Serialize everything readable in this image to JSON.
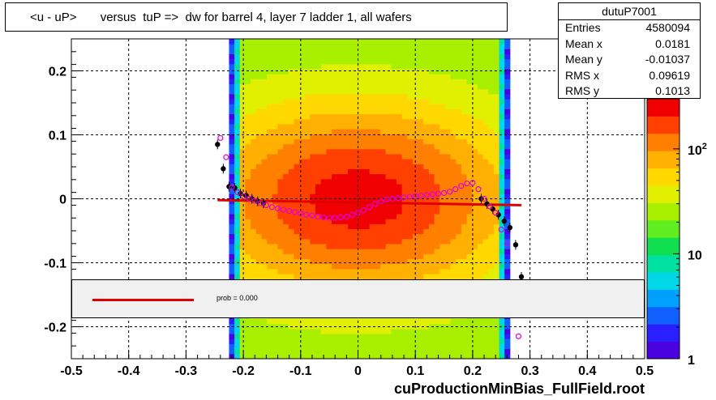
{
  "title": "<u - uP>       versus  tuP =>  dw for barrel 4, layer 7 ladder 1, all wafers",
  "stats": {
    "name": "dutuP7001",
    "rows": [
      {
        "label": "Entries",
        "value": "4580094"
      },
      {
        "label": "Mean x",
        "value": "0.0181"
      },
      {
        "label": "Mean y",
        "value": "-0.01037"
      },
      {
        "label": "RMS x",
        "value": "0.09619"
      },
      {
        "label": "RMS y",
        "value": "0.1013"
      }
    ]
  },
  "fit": {
    "text": "prob = 0.000",
    "color": "#e00000"
  },
  "footer": "cuProductionMinBias_FullField.root",
  "chart_data": {
    "type": "heatmap",
    "title": "<u - uP>       versus  tuP =>  dw for barrel 4, layer 7 ladder 1, all wafers",
    "xlim": [
      -0.5,
      0.5
    ],
    "ylim": [
      -0.25,
      0.25
    ],
    "x_ticks": [
      "-0.5",
      "-0.4",
      "-0.3",
      "-0.2",
      "-0.1",
      "0",
      "0.1",
      "0.2",
      "0.3",
      "0.4",
      "0.5"
    ],
    "y_ticks": [
      "-0.2",
      "-0.1",
      "0",
      "0.1",
      "0.2"
    ],
    "z_scale": "log",
    "z_ticks": [
      "1",
      "10",
      "10^2"
    ],
    "z_range": [
      1,
      300
    ],
    "grid": true,
    "occupied_x_range": [
      -0.225,
      0.265
    ],
    "core": {
      "x_center": 0.0,
      "y_center": 0.0,
      "x_half_width": 0.18,
      "y_half_width": 0.06
    },
    "series": [
      {
        "marker": "filled-circle",
        "color": "#000000",
        "points": [
          [
            -0.245,
            0.085
          ],
          [
            -0.235,
            0.047
          ],
          [
            -0.225,
            0.019
          ],
          [
            -0.215,
            0.017
          ],
          [
            -0.205,
            0.008
          ],
          [
            -0.195,
            0.005
          ],
          [
            -0.185,
            0.0
          ],
          [
            -0.175,
            -0.004
          ],
          [
            -0.165,
            -0.007
          ],
          [
            0.215,
            0.0
          ],
          [
            0.225,
            -0.008
          ],
          [
            0.235,
            -0.016
          ],
          [
            0.245,
            -0.025
          ],
          [
            0.255,
            -0.035
          ],
          [
            0.265,
            -0.045
          ],
          [
            0.275,
            -0.072
          ],
          [
            0.285,
            -0.122
          ]
        ]
      },
      {
        "marker": "open-circle",
        "color": "#e000e0",
        "points": [
          [
            -0.24,
            0.095
          ],
          [
            -0.23,
            0.065
          ],
          [
            -0.22,
            0.018
          ],
          [
            -0.21,
            0.01
          ],
          [
            -0.2,
            0.004
          ],
          [
            -0.19,
            0.0
          ],
          [
            -0.18,
            -0.003
          ],
          [
            -0.17,
            -0.007
          ],
          [
            -0.16,
            -0.01
          ],
          [
            -0.15,
            -0.013
          ],
          [
            -0.14,
            -0.015
          ],
          [
            -0.13,
            -0.017
          ],
          [
            -0.12,
            -0.019
          ],
          [
            -0.11,
            -0.021
          ],
          [
            -0.1,
            -0.023
          ],
          [
            -0.09,
            -0.025
          ],
          [
            -0.08,
            -0.026
          ],
          [
            -0.07,
            -0.028
          ],
          [
            -0.06,
            -0.029
          ],
          [
            -0.05,
            -0.03
          ],
          [
            -0.04,
            -0.03
          ],
          [
            -0.03,
            -0.029
          ],
          [
            -0.02,
            -0.028
          ],
          [
            -0.01,
            -0.025
          ],
          [
            0.0,
            -0.022
          ],
          [
            0.01,
            -0.018
          ],
          [
            0.02,
            -0.013
          ],
          [
            0.03,
            -0.008
          ],
          [
            0.04,
            -0.004
          ],
          [
            0.05,
            -0.001
          ],
          [
            0.06,
            0.0
          ],
          [
            0.07,
            0.001
          ],
          [
            0.08,
            0.002
          ],
          [
            0.09,
            0.003
          ],
          [
            0.1,
            0.004
          ],
          [
            0.11,
            0.005
          ],
          [
            0.12,
            0.006
          ],
          [
            0.13,
            0.007
          ],
          [
            0.14,
            0.008
          ],
          [
            0.15,
            0.009
          ],
          [
            0.16,
            0.011
          ],
          [
            0.17,
            0.015
          ],
          [
            0.18,
            0.02
          ],
          [
            0.19,
            0.024
          ],
          [
            0.2,
            0.025
          ],
          [
            0.21,
            0.015
          ],
          [
            0.22,
            0.0
          ],
          [
            0.23,
            -0.012
          ],
          [
            0.24,
            -0.022
          ],
          [
            0.25,
            -0.048
          ],
          [
            0.26,
            -0.07
          ],
          [
            0.28,
            -0.215
          ]
        ]
      }
    ],
    "fit_line": {
      "color": "#e00000",
      "points": [
        [
          -0.245,
          -0.002
        ],
        [
          0.285,
          -0.01
        ]
      ]
    }
  }
}
